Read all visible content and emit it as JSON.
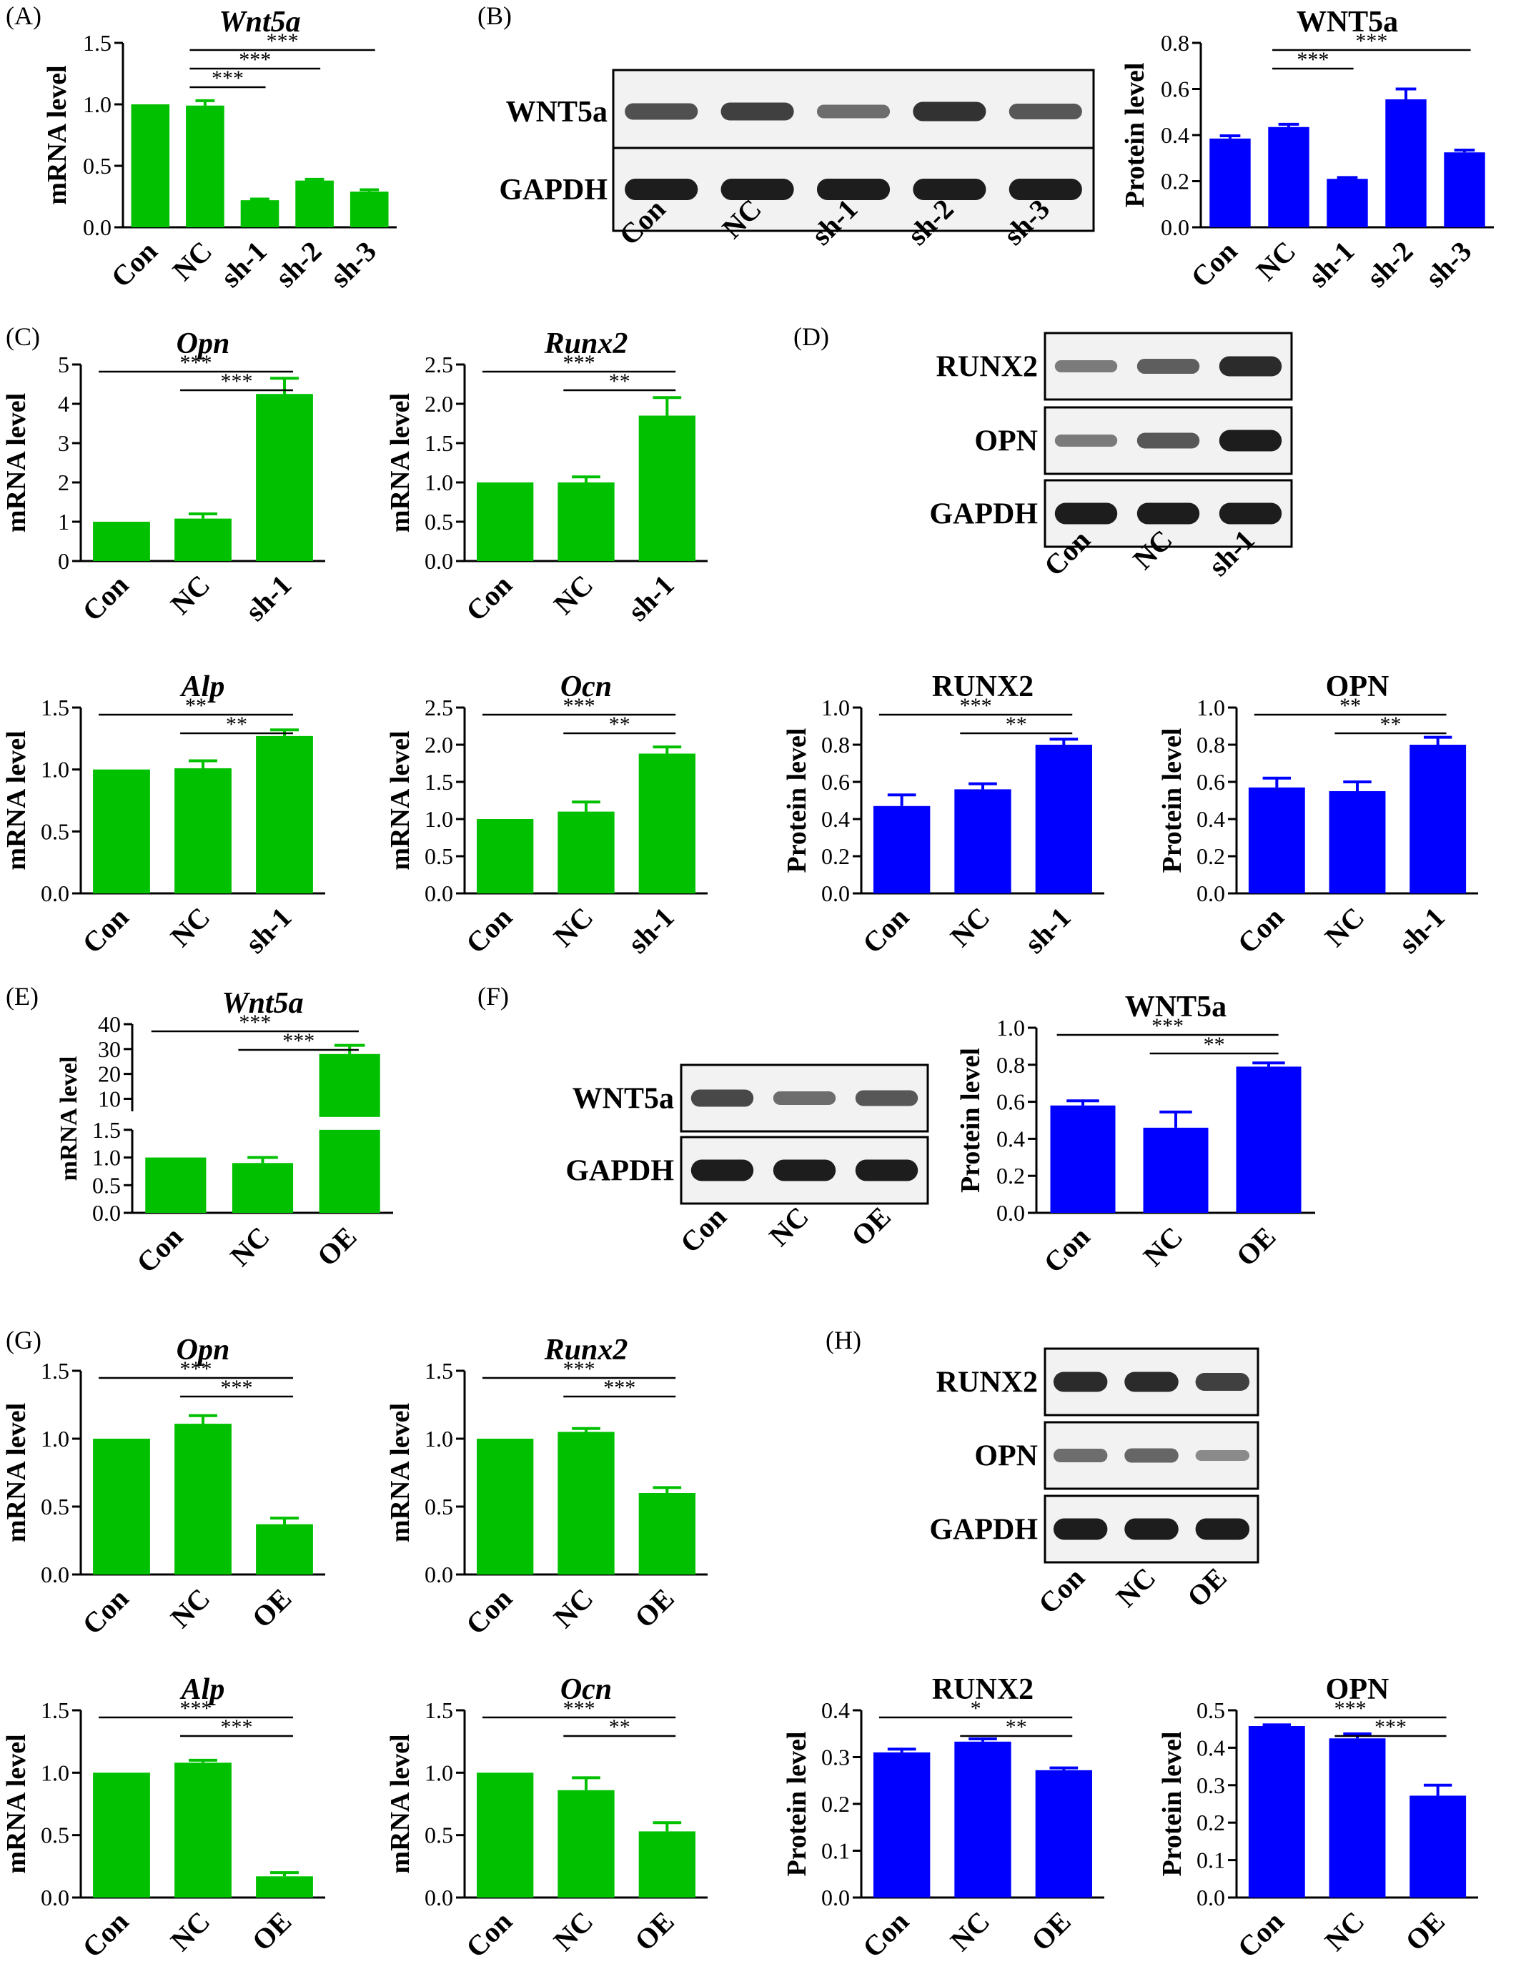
{
  "colors": {
    "mrna": "#00C000",
    "protein": "#0000FF",
    "axis": "#000000"
  },
  "panel_letters": [
    "(A)",
    "(B)",
    "(C)",
    "(D)",
    "(E)",
    "(F)",
    "(G)",
    "(H)"
  ],
  "blots": [
    {
      "lanes": [
        "Con",
        "NC",
        "sh-1",
        "sh-2",
        "sh-3"
      ],
      "rows": [
        "WNT5a",
        "GAPDH"
      ]
    },
    {
      "lanes": [
        "Con",
        "NC",
        "sh-1"
      ],
      "rows": [
        "RUNX2",
        "OPN",
        "GAPDH"
      ]
    },
    {
      "lanes": [
        "Con",
        "NC",
        "OE"
      ],
      "rows": [
        "WNT5a",
        "GAPDH"
      ]
    },
    {
      "lanes": [
        "Con",
        "NC",
        "OE"
      ],
      "rows": [
        "RUNX2",
        "OPN",
        "GAPDH"
      ]
    }
  ],
  "chart_data": [
    {
      "type": "bar",
      "title": "Wnt5a",
      "ylabel": "mRNA level",
      "categories": [
        "Con",
        "NC",
        "sh-1",
        "sh-2",
        "sh-3"
      ],
      "values": [
        1.0,
        0.99,
        0.22,
        0.38,
        0.29
      ],
      "errors": [
        0,
        0.04,
        0.01,
        0.01,
        0.015
      ],
      "ylim": [
        0,
        1.5
      ],
      "yticks": [
        "0.0",
        "0.5",
        "1.0",
        "1.5"
      ],
      "sig": [
        {
          "from": 1,
          "to": 2,
          "label": "***"
        },
        {
          "from": 1,
          "to": 3,
          "label": "***"
        },
        {
          "from": 1,
          "to": 4,
          "label": "***"
        }
      ]
    },
    {
      "type": "bar",
      "title": "WNT5a",
      "ylabel": "Protein level",
      "categories": [
        "Con",
        "NC",
        "sh-1",
        "sh-2",
        "sh-3"
      ],
      "values": [
        0.385,
        0.435,
        0.21,
        0.555,
        0.325
      ],
      "errors": [
        0.012,
        0.012,
        0.006,
        0.045,
        0.01
      ],
      "ylim": [
        0,
        0.8
      ],
      "yticks": [
        "0.0",
        "0.2",
        "0.4",
        "0.6",
        "0.8"
      ],
      "sig": [
        {
          "from": 1,
          "to": 2,
          "label": "***"
        },
        {
          "from": 1,
          "to": 4,
          "label": "***"
        }
      ]
    },
    {
      "type": "bar",
      "title": "Opn",
      "ylabel": "mRNA level",
      "categories": [
        "Con",
        "NC",
        "sh-1"
      ],
      "values": [
        1.0,
        1.08,
        4.25
      ],
      "errors": [
        0,
        0.12,
        0.4
      ],
      "ylim": [
        0,
        5
      ],
      "yticks": [
        "0",
        "1",
        "2",
        "3",
        "4",
        "5"
      ],
      "sig": [
        {
          "from": 0,
          "to": 2,
          "label": "***"
        },
        {
          "from": 1,
          "to": 2,
          "label": "***"
        }
      ]
    },
    {
      "type": "bar",
      "title": "Runx2",
      "ylabel": "mRNA level",
      "categories": [
        "Con",
        "NC",
        "sh-1"
      ],
      "values": [
        1.0,
        1.0,
        1.85
      ],
      "errors": [
        0,
        0.07,
        0.23
      ],
      "ylim": [
        0,
        2.5
      ],
      "yticks": [
        "0.0",
        "0.5",
        "1.0",
        "1.5",
        "2.0",
        "2.5"
      ],
      "sig": [
        {
          "from": 0,
          "to": 2,
          "label": "***"
        },
        {
          "from": 1,
          "to": 2,
          "label": "**"
        }
      ]
    },
    {
      "type": "bar",
      "title": "Alp",
      "ylabel": "mRNA level",
      "categories": [
        "Con",
        "NC",
        "sh-1"
      ],
      "values": [
        1.0,
        1.01,
        1.27
      ],
      "errors": [
        0,
        0.06,
        0.05
      ],
      "ylim": [
        0,
        1.5
      ],
      "yticks": [
        "0.0",
        "0.5",
        "1.0",
        "1.5"
      ],
      "sig": [
        {
          "from": 0,
          "to": 2,
          "label": "**"
        },
        {
          "from": 1,
          "to": 2,
          "label": "**"
        }
      ]
    },
    {
      "type": "bar",
      "title": "Ocn",
      "ylabel": "mRNA level",
      "categories": [
        "Con",
        "NC",
        "sh-1"
      ],
      "values": [
        1.0,
        1.1,
        1.88
      ],
      "errors": [
        0,
        0.13,
        0.09
      ],
      "ylim": [
        0,
        2.5
      ],
      "yticks": [
        "0.0",
        "0.5",
        "1.0",
        "1.5",
        "2.0",
        "2.5"
      ],
      "sig": [
        {
          "from": 0,
          "to": 2,
          "label": "***"
        },
        {
          "from": 1,
          "to": 2,
          "label": "**"
        }
      ]
    },
    {
      "type": "bar",
      "title": "RUNX2",
      "ylabel": "Protein level",
      "categories": [
        "Con",
        "NC",
        "sh-1"
      ],
      "values": [
        0.47,
        0.56,
        0.8
      ],
      "errors": [
        0.06,
        0.03,
        0.03
      ],
      "ylim": [
        0,
        1.0
      ],
      "yticks": [
        "0.0",
        "0.2",
        "0.4",
        "0.6",
        "0.8",
        "1.0"
      ],
      "sig": [
        {
          "from": 0,
          "to": 2,
          "label": "***"
        },
        {
          "from": 1,
          "to": 2,
          "label": "**"
        }
      ]
    },
    {
      "type": "bar",
      "title": "OPN",
      "ylabel": "Protein level",
      "categories": [
        "Con",
        "NC",
        "sh-1"
      ],
      "values": [
        0.57,
        0.55,
        0.8
      ],
      "errors": [
        0.05,
        0.05,
        0.04
      ],
      "ylim": [
        0,
        1.0
      ],
      "yticks": [
        "0.0",
        "0.2",
        "0.4",
        "0.6",
        "0.8",
        "1.0"
      ],
      "sig": [
        {
          "from": 0,
          "to": 2,
          "label": "**"
        },
        {
          "from": 1,
          "to": 2,
          "label": "**"
        }
      ]
    },
    {
      "type": "bar",
      "title": "Wnt5a",
      "ylabel": "mRNA level",
      "categories": [
        "Con",
        "NC",
        "OE"
      ],
      "values": [
        1.0,
        0.9,
        28
      ],
      "errors": [
        0,
        0.1,
        3.5
      ],
      "ylim": [
        0,
        40
      ],
      "axis_break": [
        1.5,
        5
      ],
      "yticks": [
        "0.0",
        "0.5",
        "1.0",
        "1.5",
        "10",
        "20",
        "30",
        "40"
      ],
      "sig": [
        {
          "from": 0,
          "to": 2,
          "label": "***"
        },
        {
          "from": 1,
          "to": 2,
          "label": "***"
        }
      ]
    },
    {
      "type": "bar",
      "title": "WNT5a",
      "ylabel": "Protein level",
      "categories": [
        "Con",
        "NC",
        "OE"
      ],
      "values": [
        0.58,
        0.46,
        0.79
      ],
      "errors": [
        0.025,
        0.085,
        0.02
      ],
      "ylim": [
        0,
        1.0
      ],
      "yticks": [
        "0.0",
        "0.2",
        "0.4",
        "0.6",
        "0.8",
        "1.0"
      ],
      "sig": [
        {
          "from": 0,
          "to": 2,
          "label": "***"
        },
        {
          "from": 1,
          "to": 2,
          "label": "**"
        }
      ]
    },
    {
      "type": "bar",
      "title": "Opn",
      "ylabel": "mRNA level",
      "categories": [
        "Con",
        "NC",
        "OE"
      ],
      "values": [
        1.0,
        1.11,
        0.37
      ],
      "errors": [
        0,
        0.06,
        0.045
      ],
      "ylim": [
        0,
        1.5
      ],
      "yticks": [
        "0.0",
        "0.5",
        "1.0",
        "1.5"
      ],
      "sig": [
        {
          "from": 0,
          "to": 2,
          "label": "***"
        },
        {
          "from": 1,
          "to": 2,
          "label": "***"
        }
      ]
    },
    {
      "type": "bar",
      "title": "Runx2",
      "ylabel": "mRNA level",
      "categories": [
        "Con",
        "NC",
        "OE"
      ],
      "values": [
        1.0,
        1.05,
        0.6
      ],
      "errors": [
        0,
        0.025,
        0.04
      ],
      "ylim": [
        0,
        1.5
      ],
      "yticks": [
        "0.0",
        "0.5",
        "1.0",
        "1.5"
      ],
      "sig": [
        {
          "from": 0,
          "to": 2,
          "label": "***"
        },
        {
          "from": 1,
          "to": 2,
          "label": "***"
        }
      ]
    },
    {
      "type": "bar",
      "title": "Alp",
      "ylabel": "mRNA level",
      "categories": [
        "Con",
        "NC",
        "OE"
      ],
      "values": [
        1.0,
        1.08,
        0.17
      ],
      "errors": [
        0,
        0.02,
        0.03
      ],
      "ylim": [
        0,
        1.5
      ],
      "yticks": [
        "0.0",
        "0.5",
        "1.0",
        "1.5"
      ],
      "sig": [
        {
          "from": 0,
          "to": 2,
          "label": "***"
        },
        {
          "from": 1,
          "to": 2,
          "label": "***"
        }
      ]
    },
    {
      "type": "bar",
      "title": "Ocn",
      "ylabel": "mRNA level",
      "categories": [
        "Con",
        "NC",
        "OE"
      ],
      "values": [
        1.0,
        0.86,
        0.53
      ],
      "errors": [
        0,
        0.1,
        0.07
      ],
      "ylim": [
        0,
        1.5
      ],
      "yticks": [
        "0.0",
        "0.5",
        "1.0",
        "1.5"
      ],
      "sig": [
        {
          "from": 0,
          "to": 2,
          "label": "***"
        },
        {
          "from": 1,
          "to": 2,
          "label": "**"
        }
      ]
    },
    {
      "type": "bar",
      "title": "RUNX2",
      "ylabel": "Protein level",
      "categories": [
        "Con",
        "NC",
        "OE"
      ],
      "values": [
        0.31,
        0.333,
        0.272
      ],
      "errors": [
        0.007,
        0.006,
        0.005
      ],
      "ylim": [
        0,
        0.4
      ],
      "yticks": [
        "0.0",
        "0.1",
        "0.2",
        "0.3",
        "0.4"
      ],
      "sig": [
        {
          "from": 0,
          "to": 2,
          "label": "*"
        },
        {
          "from": 1,
          "to": 2,
          "label": "**"
        }
      ]
    },
    {
      "type": "bar",
      "title": "OPN",
      "ylabel": "Protein level",
      "categories": [
        "Con",
        "NC",
        "OE"
      ],
      "values": [
        0.458,
        0.425,
        0.272
      ],
      "errors": [
        0.003,
        0.012,
        0.028
      ],
      "ylim": [
        0,
        0.5
      ],
      "yticks": [
        "0.0",
        "0.1",
        "0.2",
        "0.3",
        "0.4",
        "0.5"
      ],
      "sig": [
        {
          "from": 0,
          "to": 2,
          "label": "***"
        },
        {
          "from": 1,
          "to": 2,
          "label": "***"
        }
      ]
    }
  ]
}
